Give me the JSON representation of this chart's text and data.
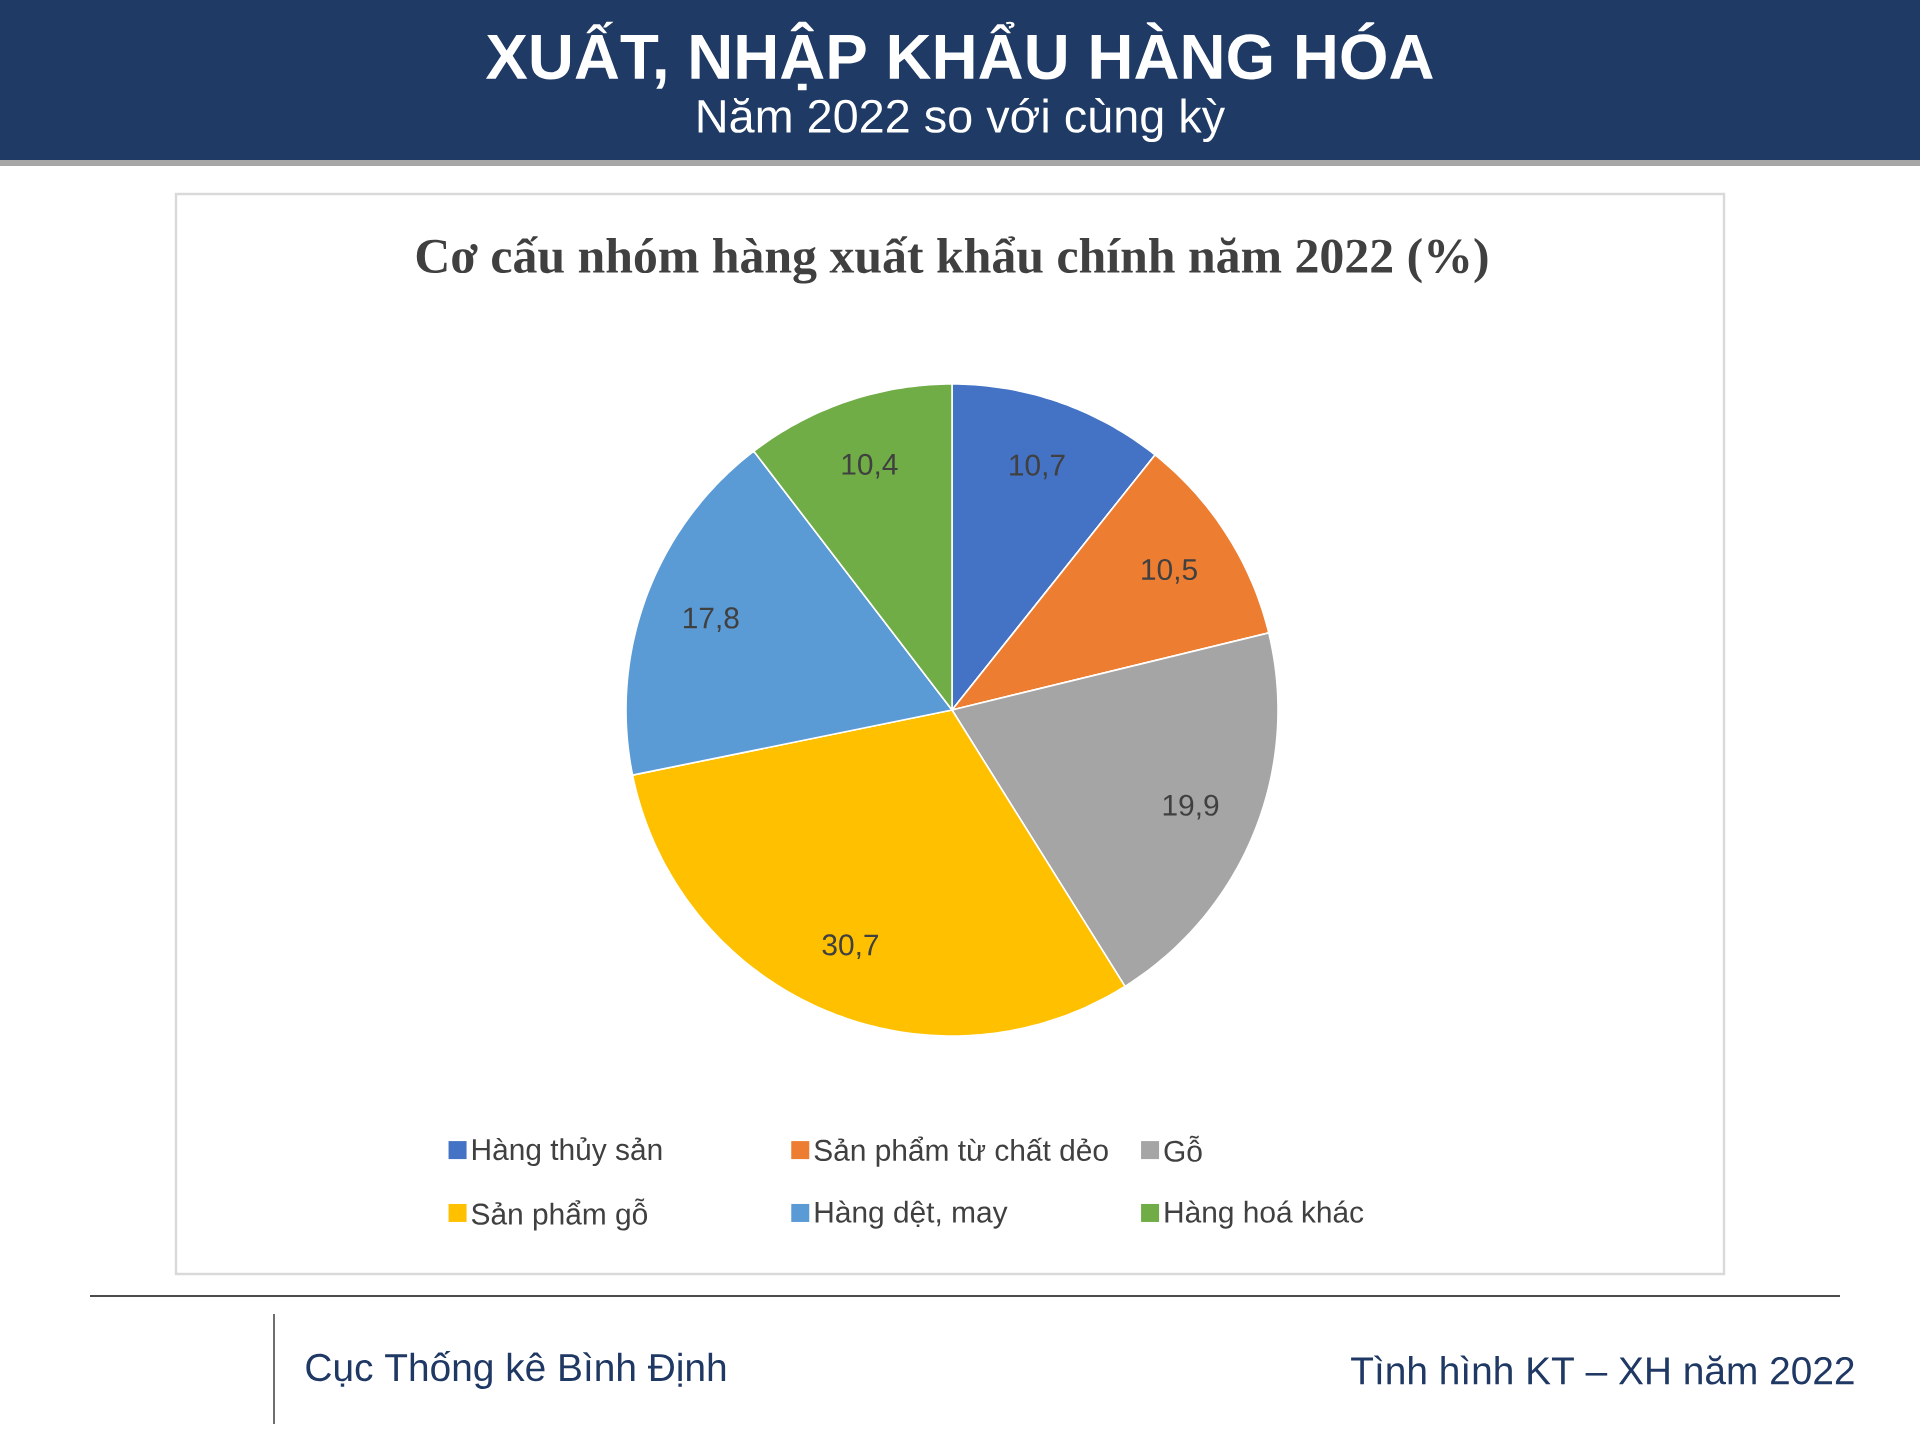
{
  "chart_data": {
    "type": "pie",
    "title": "Cơ cấu nhóm hàng xuất khẩu chính năm 2022 (%)",
    "annotations": [
      "XUẤT, NHẬP KHẨU HÀNG HÓA",
      "Năm 2022 so với cùng kỳ",
      "Cục Thống kê Bình Định",
      "Tình hình KT – XH năm 2022"
    ],
    "categories": [
      "Hàng thủy sản",
      "Sản phẩm từ chất dẻo",
      "Gỗ",
      "Sản phẩm gỗ",
      "Hàng dệt, may",
      "Hàng hoá khác"
    ],
    "values": [
      10.7,
      10.5,
      19.9,
      30.7,
      17.8,
      10.4
    ],
    "value_labels": [
      "10,7",
      "10,5",
      "19,9",
      "30,7",
      "17,8",
      "10,4"
    ],
    "colors": [
      "#4472c4",
      "#ed7d31",
      "#a5a5a5",
      "#ffc000",
      "#5b9bd5",
      "#70ad47"
    ],
    "legend": "bottom"
  }
}
